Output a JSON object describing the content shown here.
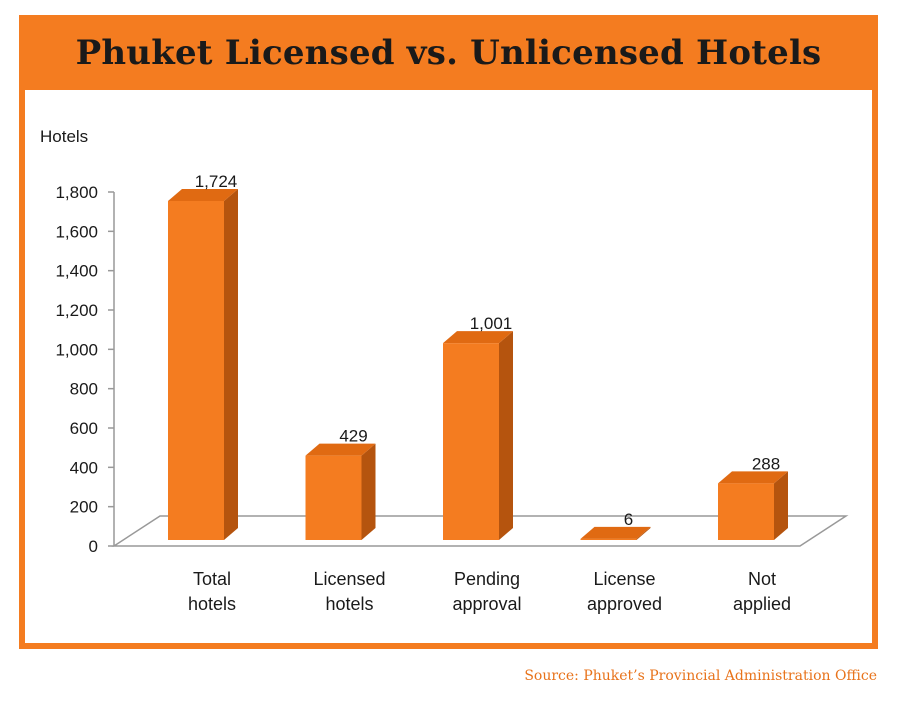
{
  "chart_data": {
    "type": "bar",
    "title": "Phuket Licensed vs. Unlicensed Hotels",
    "ylabel": "Hotels",
    "xlabel": "",
    "ylim": [
      0,
      1800
    ],
    "yticks": [
      "0",
      "200",
      "400",
      "600",
      "800",
      "1,000",
      "1,200",
      "1,400",
      "1,600",
      "1,800"
    ],
    "categories": [
      [
        "Total",
        "hotels"
      ],
      [
        "Licensed",
        "hotels"
      ],
      [
        "Pending",
        "approval"
      ],
      [
        "License",
        "approved"
      ],
      [
        "Not",
        "applied"
      ]
    ],
    "values": [
      1724,
      429,
      1001,
      6,
      288
    ],
    "value_labels": [
      "1,724",
      "429",
      "1,001",
      "6",
      "288"
    ],
    "grid": false,
    "legend": "none",
    "colors": {
      "bar_front": "#f47c20",
      "bar_side": "#b5540e",
      "bar_top": "#e06a12",
      "frame": "#f47c20",
      "axis": "#999999"
    },
    "source": "Source: Phuket’s Provincial Administration Office"
  }
}
